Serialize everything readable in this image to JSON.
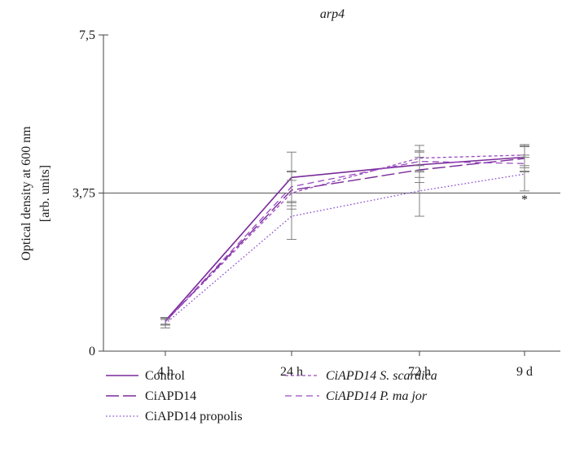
{
  "chart_data": {
    "type": "line",
    "title": "arp4",
    "xlabel": "",
    "ylabel_line1": "Optical density at 600 nm",
    "ylabel_line2": "[arb. units]",
    "categories": [
      "4 h",
      "24 h",
      "72 h",
      "9 d"
    ],
    "yticks": [
      {
        "value": 0,
        "label": "0"
      },
      {
        "value": 3.75,
        "label": "3,75"
      },
      {
        "value": 7.5,
        "label": "7,5"
      }
    ],
    "ylim": [
      0,
      7.5
    ],
    "reference_line": 3.75,
    "grid": false,
    "legend_position": "bottom",
    "annotation": {
      "text": "*",
      "category": "9 d",
      "value": 3.5
    },
    "series": [
      {
        "name": "Control",
        "legend": [
          {
            "text": "Control",
            "italic": false
          }
        ],
        "values": [
          0.72,
          4.12,
          4.42,
          4.6
        ],
        "errors": [
          0.08,
          0.6,
          0.3,
          0.25
        ],
        "color": "#7a2a9a",
        "dash": "solid",
        "width": 1.6
      },
      {
        "name": "CiAPD14",
        "legend": [
          {
            "text": "CiAPD14",
            "italic": false
          }
        ],
        "values": [
          0.7,
          3.82,
          4.3,
          4.57
        ],
        "errors": [
          0.08,
          0.45,
          0.3,
          0.3
        ],
        "color": "#7a2a9a",
        "dash": "longdash",
        "width": 1.4
      },
      {
        "name": "CiAPD14 propolis",
        "legend": [
          {
            "text": "CiAPD14 propolis",
            "italic": false
          }
        ],
        "values": [
          0.65,
          3.2,
          3.8,
          4.2
        ],
        "errors": [
          0.1,
          0.55,
          0.6,
          0.4
        ],
        "color": "#8a4ad0",
        "dash": "dotted",
        "width": 1.3
      },
      {
        "name": "CiAPD14 S. scardica",
        "legend": [
          {
            "text": "CiAPD14",
            "italic": true
          },
          {
            "text": " S. scardica",
            "italic": true
          }
        ],
        "values": [
          0.7,
          3.75,
          4.58,
          4.65
        ],
        "errors": [
          0.08,
          0.3,
          0.3,
          0.25
        ],
        "color": "#9a4ac0",
        "dash": "shortdash",
        "width": 1.3
      },
      {
        "name": "CiAPD14 P. major",
        "legend": [
          {
            "text": "CiAPD14",
            "italic": true
          },
          {
            "text": " P. ma jor",
            "italic": true
          }
        ],
        "values": [
          0.7,
          3.9,
          4.5,
          4.45
        ],
        "errors": [
          0.08,
          0.35,
          0.25,
          0.2
        ],
        "color": "#9a4ac0",
        "dash": "dash",
        "width": 1.3
      }
    ],
    "axis_color": "#444444",
    "errorbar_color": "#7f7f7f"
  }
}
